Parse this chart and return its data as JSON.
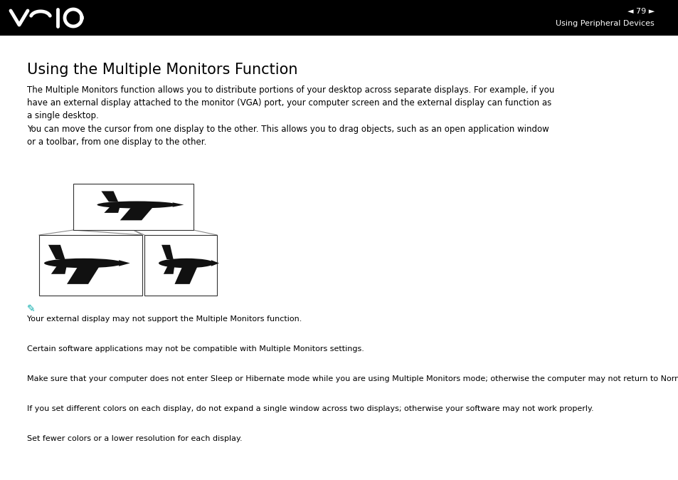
{
  "bg_color": "#ffffff",
  "header_bg": "#000000",
  "header_text_color": "#ffffff",
  "header_page_num": "79",
  "header_section": "Using Peripheral Devices",
  "title": "Using the Multiple Monitors Function",
  "body_para1": "The Multiple Monitors function allows you to distribute portions of your desktop across separate displays. For example, if you\nhave an external display attached to the monitor (VGA) port, your computer screen and the external display can function as\na single desktop.",
  "body_para2": "You can move the cursor from one display to the other. This allows you to drag objects, such as an open application window\nor a toolbar, from one display to the other.",
  "note_line1": "Your external display may not support the Multiple Monitors function.",
  "note_line2": "Certain software applications may not be compatible with Multiple Monitors settings.",
  "note_line3": "Make sure that your computer does not enter Sleep or Hibernate mode while you are using Multiple Monitors mode; otherwise the computer may not return to Normal mode.",
  "note_line4": "If you set different colors on each display, do not expand a single window across two displays; otherwise your software may not work properly.",
  "note_line5": "Set fewer colors or a lower resolution for each display.",
  "title_fontsize": 15,
  "body_fontsize": 8.5,
  "note_fontsize": 8,
  "text_color": "#000000",
  "line_color": "#888888"
}
